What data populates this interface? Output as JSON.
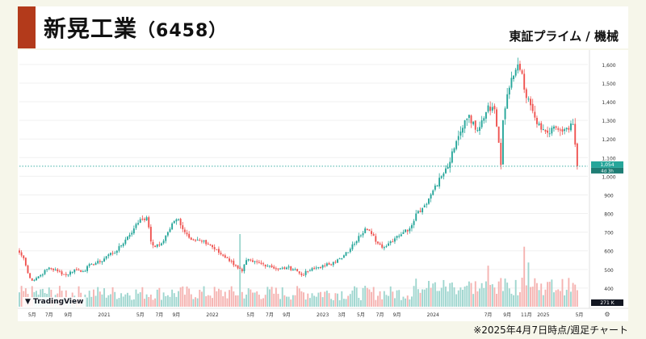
{
  "header": {
    "company": "新晃工業",
    "code": "（6458）",
    "market": "東証プライム / 機械"
  },
  "footnote": "※2025年4月7日時点/週足チャート",
  "watermark": "TradingView",
  "colors": {
    "accent": "#b33a1b",
    "up": "#26a69a",
    "down": "#ef5350",
    "up_volume": "#9fd6cf",
    "down_volume": "#f5b3b1",
    "price_line": "#26a69a",
    "price_label_bg": "#26a69a",
    "countdown_bg": "#131722"
  },
  "chart_data": {
    "type": "candlestick",
    "title": "新晃工業（6458）",
    "interval": "weekly",
    "ylim": [
      300,
      1660
    ],
    "y_ticks": [
      400,
      500,
      600,
      700,
      800,
      900,
      1000,
      1100,
      1200,
      1300,
      1400,
      1500,
      1600
    ],
    "y_tick_labels": [
      "400",
      "500",
      "600",
      "700",
      "800",
      "900",
      "1,000",
      "1,100",
      "1,200",
      "1,300",
      "1,400",
      "1,500",
      "1,600"
    ],
    "x_labels": [
      {
        "label": "5月",
        "week": 6
      },
      {
        "label": "7月",
        "week": 14
      },
      {
        "label": "9月",
        "week": 23
      },
      {
        "label": "2021",
        "week": 40
      },
      {
        "label": "5月",
        "week": 57
      },
      {
        "label": "7月",
        "week": 66
      },
      {
        "label": "9月",
        "week": 74
      },
      {
        "label": "2022",
        "week": 91
      },
      {
        "label": "5月",
        "week": 109
      },
      {
        "label": "7月",
        "week": 118
      },
      {
        "label": "9月",
        "week": 126
      },
      {
        "label": "2023",
        "week": 143
      },
      {
        "label": "3月",
        "week": 152
      },
      {
        "label": "5月",
        "week": 161
      },
      {
        "label": "7月",
        "week": 170
      },
      {
        "label": "9月",
        "week": 178
      },
      {
        "label": "2024",
        "week": 195
      },
      {
        "label": "7月",
        "week": 221
      },
      {
        "label": "9月",
        "week": 230
      },
      {
        "label": "11月",
        "week": 239
      },
      {
        "label": "2025",
        "week": 247
      },
      {
        "label": "5月",
        "week": 264
      }
    ],
    "current_price": 1054,
    "current_price_label": "1,054",
    "countdown_label": "4d 3h",
    "volume_axis_label": "271 K",
    "anchors": [
      [
        0,
        590
      ],
      [
        2,
        560
      ],
      [
        4,
        480
      ],
      [
        6,
        440
      ],
      [
        10,
        470
      ],
      [
        14,
        510
      ],
      [
        18,
        490
      ],
      [
        22,
        470
      ],
      [
        26,
        500
      ],
      [
        30,
        490
      ],
      [
        34,
        530
      ],
      [
        38,
        540
      ],
      [
        42,
        580
      ],
      [
        46,
        600
      ],
      [
        50,
        660
      ],
      [
        54,
        720
      ],
      [
        57,
        770
      ],
      [
        60,
        780
      ],
      [
        62,
        650
      ],
      [
        64,
        620
      ],
      [
        67,
        640
      ],
      [
        70,
        700
      ],
      [
        73,
        760
      ],
      [
        75,
        770
      ],
      [
        78,
        700
      ],
      [
        82,
        660
      ],
      [
        86,
        650
      ],
      [
        90,
        630
      ],
      [
        94,
        590
      ],
      [
        98,
        560
      ],
      [
        102,
        520
      ],
      [
        105,
        490
      ],
      [
        107,
        550
      ],
      [
        110,
        540
      ],
      [
        114,
        530
      ],
      [
        118,
        520
      ],
      [
        122,
        500
      ],
      [
        126,
        510
      ],
      [
        130,
        500
      ],
      [
        133,
        470
      ],
      [
        136,
        490
      ],
      [
        140,
        510
      ],
      [
        144,
        520
      ],
      [
        148,
        540
      ],
      [
        152,
        560
      ],
      [
        156,
        610
      ],
      [
        160,
        680
      ],
      [
        163,
        720
      ],
      [
        166,
        690
      ],
      [
        169,
        640
      ],
      [
        172,
        620
      ],
      [
        175,
        650
      ],
      [
        178,
        680
      ],
      [
        181,
        700
      ],
      [
        184,
        720
      ],
      [
        187,
        800
      ],
      [
        190,
        830
      ],
      [
        193,
        880
      ],
      [
        196,
        950
      ],
      [
        199,
        1000
      ],
      [
        202,
        1050
      ],
      [
        205,
        1150
      ],
      [
        208,
        1240
      ],
      [
        210,
        1300
      ],
      [
        212,
        1330
      ],
      [
        215,
        1250
      ],
      [
        218,
        1300
      ],
      [
        221,
        1380
      ],
      [
        224,
        1360
      ],
      [
        226,
        1180
      ],
      [
        227,
        1060
      ],
      [
        228,
        1300
      ],
      [
        230,
        1440
      ],
      [
        233,
        1540
      ],
      [
        235,
        1600
      ],
      [
        237,
        1550
      ],
      [
        239,
        1420
      ],
      [
        242,
        1350
      ],
      [
        244,
        1280
      ],
      [
        246,
        1250
      ],
      [
        248,
        1240
      ],
      [
        250,
        1230
      ],
      [
        253,
        1260
      ],
      [
        256,
        1240
      ],
      [
        259,
        1250
      ],
      [
        261,
        1280
      ],
      [
        262,
        1170
      ],
      [
        263,
        1054
      ]
    ],
    "volume_spikes": [
      {
        "week": 104,
        "value": 230,
        "up": true
      },
      {
        "week": 190,
        "value": 55,
        "up": true
      },
      {
        "week": 194,
        "value": 60,
        "up": false
      },
      {
        "week": 221,
        "value": 130,
        "up": false
      },
      {
        "week": 226,
        "value": 80,
        "up": false
      },
      {
        "week": 238,
        "value": 190,
        "up": false
      },
      {
        "week": 240,
        "value": 140,
        "up": true
      },
      {
        "week": 243,
        "value": 90,
        "up": false
      },
      {
        "week": 262,
        "value": 70,
        "up": false
      }
    ]
  }
}
